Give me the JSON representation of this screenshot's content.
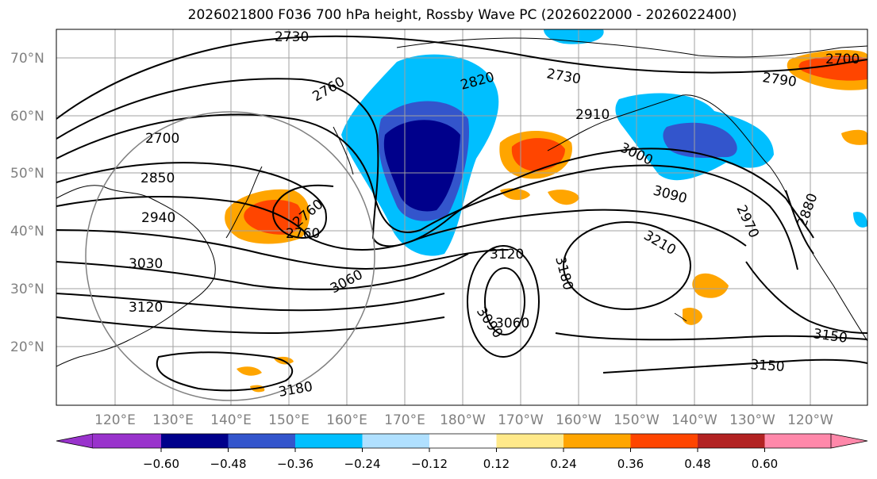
{
  "title": "2026021800 F036 700 hPa height, Rossby Wave PC (2026022000 - 2026022400)",
  "lat_labels": [
    "70°N",
    "60°N",
    "50°N",
    "40°N",
    "30°N",
    "20°N"
  ],
  "lon_labels": [
    "120°E",
    "130°E",
    "140°E",
    "150°E",
    "160°E",
    "170°E",
    "180°W",
    "170°W",
    "160°W",
    "150°W",
    "140°W",
    "130°W",
    "120°W"
  ],
  "contour_labels": [
    "2730",
    "2760",
    "2820",
    "2730",
    "2790",
    "2700",
    "2700",
    "2910",
    "3000",
    "2850",
    "3090",
    "2940",
    "2760",
    "2760",
    "2970",
    "2880",
    "3030",
    "3120",
    "3210",
    "3060",
    "3180",
    "3120",
    "3090",
    "3060",
    "3150",
    "3150",
    "3180"
  ],
  "colorbar": {
    "ticks": [
      "−0.60",
      "−0.48",
      "−0.36",
      "−0.24",
      "−0.12",
      "0.12",
      "0.24",
      "0.36",
      "0.48",
      "0.60"
    ],
    "colors": [
      "#9933cc",
      "#00008b",
      "#3355cc",
      "#00bfff",
      "#b0e0ff",
      "#ffffff",
      "#ffe98a",
      "#ffa500",
      "#ff4500",
      "#b22222",
      "#ff88aa"
    ]
  }
}
